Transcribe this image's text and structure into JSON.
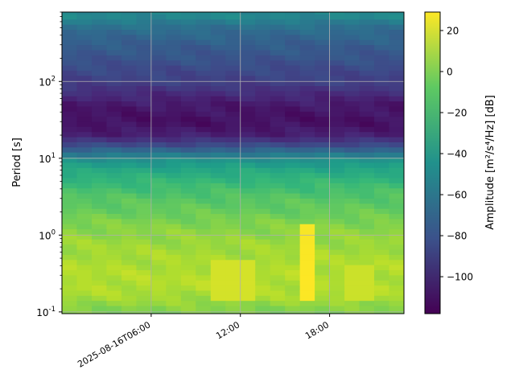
{
  "chart_data": {
    "type": "heatmap",
    "title": "",
    "xlabel": "",
    "ylabel": "Period [s]",
    "x_axis": {
      "kind": "datetime",
      "range": [
        "2025-08-16T00:00",
        "2025-08-16T23:00"
      ],
      "tick_labels": [
        "2025-08-16T06:00",
        "12:00",
        "18:00"
      ],
      "tick_values": [
        "2025-08-16T06:00",
        "2025-08-16T12:00",
        "2025-08-16T18:00"
      ]
    },
    "y_axis": {
      "scale": "log",
      "range": [
        0.095,
        800
      ],
      "tick_labels": [
        "10^-1",
        "10^0",
        "10^1",
        "10^2"
      ],
      "tick_values": [
        0.1,
        1,
        10,
        100
      ]
    },
    "grid": true,
    "colormap": "viridis",
    "colorbar": {
      "label": "Amplitude [m²/s⁴/Hz] [dB]",
      "range": [
        -118,
        29
      ],
      "tick_labels": [
        "20",
        "0",
        "−20",
        "−40",
        "−60",
        "−80",
        "−100"
      ],
      "tick_values": [
        20,
        0,
        -20,
        -40,
        -60,
        -80,
        -100
      ]
    },
    "time_hours": [
      0,
      1,
      2,
      3,
      4,
      5,
      6,
      7,
      8,
      9,
      10,
      11,
      12,
      13,
      14,
      15,
      16,
      17,
      18,
      19,
      20,
      21,
      22,
      23
    ],
    "period_s": [
      0.1,
      0.15,
      0.2,
      0.3,
      0.5,
      0.7,
      1,
      1.5,
      2,
      3,
      5,
      7,
      10,
      15,
      20,
      30,
      50,
      70,
      100,
      150,
      200,
      300,
      500,
      700
    ],
    "amplitude_profile_db": [
      0,
      8,
      12,
      12,
      10,
      8,
      5,
      0,
      -5,
      -10,
      -20,
      -30,
      -45,
      -85,
      -105,
      -112,
      -108,
      -100,
      -90,
      -85,
      -80,
      -75,
      -65,
      -50
    ],
    "anomalies": [
      {
        "time_hours": [
          16,
          17
        ],
        "period_s": [
          0.15,
          1.5
        ],
        "amplitude_db": 29
      },
      {
        "time_hours": [
          10,
          13
        ],
        "period_s": [
          0.15,
          0.5
        ],
        "amplitude_db": 20
      },
      {
        "time_hours": [
          19,
          21
        ],
        "period_s": [
          0.15,
          0.4
        ],
        "amplitude_db": 18
      }
    ]
  }
}
